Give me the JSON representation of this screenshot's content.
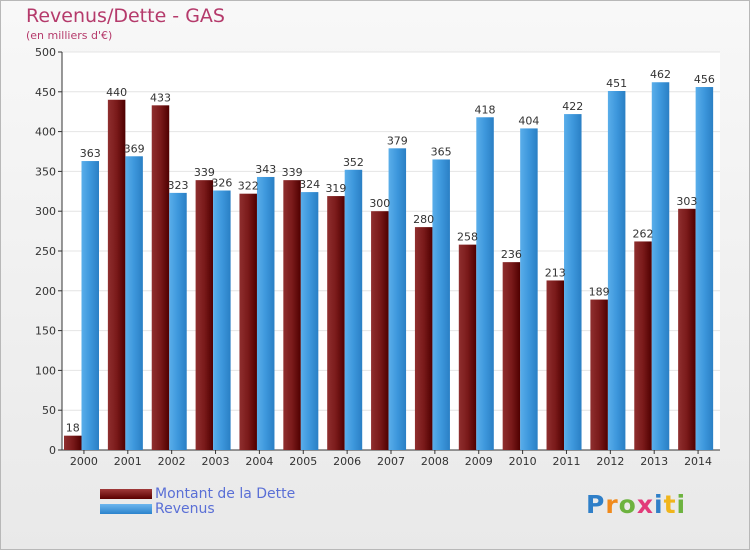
{
  "title": "Revenus/Dette - GAS",
  "subtitle": "(en milliers d'€)",
  "logo_text": "Proxiti",
  "chart_data": {
    "type": "bar",
    "title": "Revenus/Dette - GAS",
    "subtitle": "(en milliers d'€)",
    "categories": [
      "2000",
      "2001",
      "2002",
      "2003",
      "2004",
      "2005",
      "2006",
      "2007",
      "2008",
      "2009",
      "2010",
      "2011",
      "2012",
      "2013",
      "2014"
    ],
    "series": [
      {
        "name": "Montant de la Dette",
        "color": "#7a1a1a",
        "values": [
          18,
          440,
          433,
          339,
          322,
          339,
          319,
          300,
          280,
          258,
          236,
          213,
          189,
          262,
          303
        ]
      },
      {
        "name": "Revenus",
        "color": "#3d97dc",
        "values": [
          363,
          369,
          323,
          326,
          343,
          324,
          352,
          379,
          365,
          418,
          404,
          422,
          451,
          462,
          456
        ]
      }
    ],
    "ylim": [
      0,
      500
    ],
    "yticks": [
      0,
      50,
      100,
      150,
      200,
      250,
      300,
      350,
      400,
      450,
      500
    ],
    "grid": true,
    "legend": "bottom-left"
  }
}
